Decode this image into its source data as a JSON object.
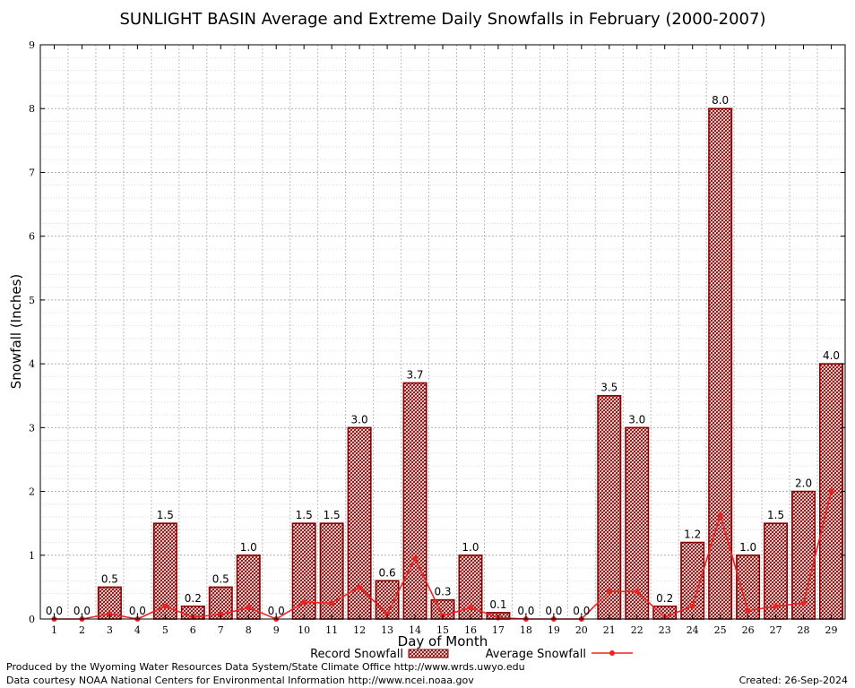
{
  "chart_data": {
    "type": "bar",
    "title": "SUNLIGHT BASIN Average and Extreme Daily Snowfalls in February (2000-2007)",
    "xlabel": "Day of Month",
    "ylabel": "Snowfall (Inches)",
    "ylim": [
      0,
      9
    ],
    "yticks": [
      "0",
      "1",
      "2",
      "3",
      "4",
      "5",
      "6",
      "7",
      "8",
      "9"
    ],
    "grid": true,
    "legend_position": "bottom",
    "categories": [
      "1",
      "2",
      "3",
      "4",
      "5",
      "6",
      "7",
      "8",
      "9",
      "10",
      "11",
      "12",
      "13",
      "14",
      "15",
      "16",
      "17",
      "18",
      "19",
      "20",
      "21",
      "22",
      "23",
      "24",
      "25",
      "26",
      "27",
      "28",
      "29"
    ],
    "series": [
      {
        "name": "Record Snowfall",
        "type": "bar",
        "color": "#8b0000",
        "values": [
          0.0,
          0.0,
          0.5,
          0.0,
          1.5,
          0.2,
          0.5,
          1.0,
          0.0,
          1.5,
          1.5,
          3.0,
          0.6,
          3.7,
          0.3,
          1.0,
          0.1,
          0.0,
          0.0,
          0.0,
          3.5,
          3.0,
          0.2,
          1.2,
          8.0,
          1.0,
          1.5,
          2.0,
          4.0
        ],
        "labels": [
          "0.0",
          "0.0",
          "0.5",
          "0.0",
          "1.5",
          "0.2",
          "0.5",
          "1.0",
          "0.0",
          "1.5",
          "1.5",
          "3.0",
          "0.6",
          "3.7",
          "0.3",
          "1.0",
          "0.1",
          "0.0",
          "0.0",
          "0.0",
          "3.5",
          "3.0",
          "0.2",
          "1.2",
          "8.0",
          "1.0",
          "1.5",
          "2.0",
          "4.0"
        ]
      },
      {
        "name": "Average Snowfall",
        "type": "line",
        "color": "#ee2222",
        "values": [
          0.0,
          0.0,
          0.08,
          0.0,
          0.2,
          0.03,
          0.07,
          0.18,
          0.0,
          0.26,
          0.25,
          0.5,
          0.08,
          0.95,
          0.05,
          0.18,
          0.02,
          0.0,
          0.0,
          0.0,
          0.43,
          0.43,
          0.03,
          0.2,
          1.63,
          0.13,
          0.2,
          0.25,
          2.0
        ]
      }
    ]
  },
  "footer": {
    "line1": "Produced by the Wyoming Water Resources Data System/State Climate Office http://www.wrds.uwyo.edu",
    "line2": "Data courtesy NOAA National Centers for Environmental Information http://www.ncei.noaa.gov",
    "created": "Created:  26-Sep-2024"
  }
}
